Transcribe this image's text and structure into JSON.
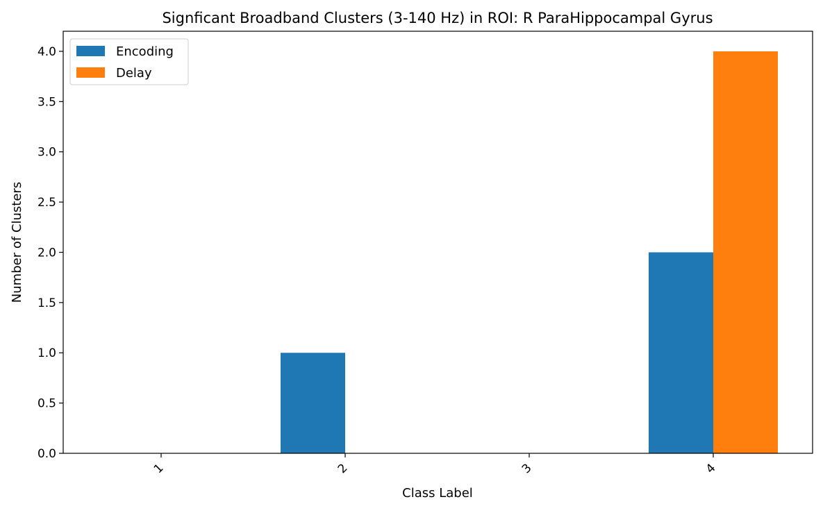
{
  "chart_data": {
    "type": "bar",
    "title": "Signficant Broadband Clusters (3-140 Hz) in ROI: R ParaHippocampal Gyrus",
    "xlabel": "Class Label",
    "ylabel": "Number of Clusters",
    "categories": [
      "1",
      "2",
      "3",
      "4"
    ],
    "series": [
      {
        "name": "Encoding",
        "color": "#1f77b4",
        "values": [
          0,
          1,
          0,
          2
        ]
      },
      {
        "name": "Delay",
        "color": "#ff7f0e",
        "values": [
          0,
          0,
          0,
          4
        ]
      }
    ],
    "ylim": [
      0,
      4.2
    ],
    "yticks": [
      0.0,
      0.5,
      1.0,
      1.5,
      2.0,
      2.5,
      3.0,
      3.5,
      4.0
    ],
    "ytick_labels": [
      "0.0",
      "0.5",
      "1.0",
      "1.5",
      "2.0",
      "2.5",
      "3.0",
      "3.5",
      "4.0"
    ],
    "grid": false,
    "legend_position": "top-left",
    "xtick_rotation_deg": 45
  }
}
